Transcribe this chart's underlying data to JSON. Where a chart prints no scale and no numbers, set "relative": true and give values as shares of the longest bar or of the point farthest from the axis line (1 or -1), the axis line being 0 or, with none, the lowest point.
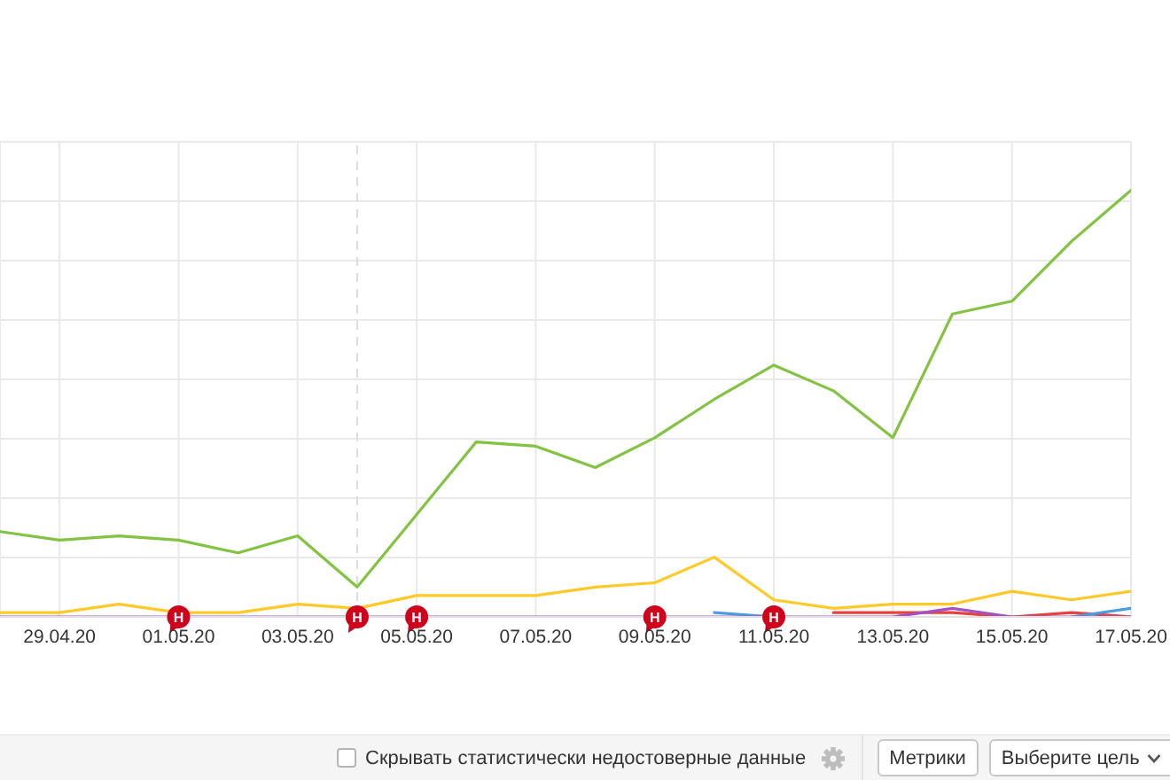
{
  "chart_data": {
    "type": "line",
    "x": [
      "--04-28",
      "--04-29",
      "--04-30",
      "--05-01",
      "--05-02",
      "--05-03",
      "--05-04",
      "--05-05",
      "--05-06",
      "--05-07",
      "--05-08",
      "--05-09",
      "--05-10",
      "--05-11",
      "--05-12",
      "--05-13",
      "--05-14",
      "--05-15",
      "--05-16",
      "--05-17"
    ],
    "series": [
      {
        "color": "#82c341",
        "values": [
          0.2,
          0.18,
          0.19,
          0.18,
          0.15,
          0.19,
          0.07,
          0.24,
          0.41,
          0.4,
          0.35,
          0.42,
          0.51,
          0.59,
          0.53,
          0.42,
          0.71,
          0.74,
          0.88,
          1
        ]
      },
      {
        "color": "#ffc928",
        "values": [
          0.01,
          0.01,
          0.03,
          0.01,
          0.01,
          0.03,
          0.02,
          0.05,
          0.05,
          0.05,
          0.07,
          0.08,
          0.14,
          0.04,
          0.02,
          0.03,
          0.03,
          0.06,
          0.04,
          0.06
        ]
      },
      {
        "color": "#e8403a",
        "values": [
          null,
          null,
          null,
          null,
          null,
          null,
          null,
          null,
          null,
          null,
          null,
          null,
          null,
          null,
          0.01,
          0.01,
          0.01,
          0,
          0.01,
          0
        ]
      },
      {
        "color": "#4a9de0",
        "values": [
          null,
          null,
          null,
          null,
          null,
          null,
          null,
          null,
          null,
          null,
          null,
          null,
          0.01,
          0,
          null,
          null,
          null,
          null,
          0,
          0.02
        ]
      },
      {
        "color": "#a352c4",
        "values": [
          0,
          0,
          0,
          0,
          0,
          0,
          0,
          0,
          0,
          0,
          0,
          0,
          0,
          0,
          0,
          0,
          0.02,
          0,
          0,
          0
        ]
      }
    ],
    "relative": true,
    "xlim": [
      "--04-28",
      "--05-17"
    ],
    "xticks": [
      {
        "value": "--04-29",
        "label": "29.04.20"
      },
      {
        "value": "--05-01",
        "label": "01.05.20"
      },
      {
        "value": "--05-03",
        "label": "03.05.20"
      },
      {
        "value": "--05-05",
        "label": "05.05.20"
      },
      {
        "value": "--05-07",
        "label": "07.05.20"
      },
      {
        "value": "--05-09",
        "label": "09.05.20"
      },
      {
        "value": "--05-11",
        "label": "11.05.20"
      },
      {
        "value": "--05-13",
        "label": "13.05.20"
      },
      {
        "value": "--05-15",
        "label": "15.05.20"
      },
      {
        "value": "--05-17",
        "label": "17.05.20"
      }
    ],
    "grid": true,
    "marker": "none",
    "ref_lines": [
      {
        "axis": "x",
        "value": "--05-04",
        "color": "#dddddd",
        "line_style": "dashed"
      }
    ],
    "annotations": [
      {
        "text": "Н",
        "x": "--05-01",
        "y": 0
      },
      {
        "text": "Н",
        "x": "--05-04",
        "y": 0
      },
      {
        "text": "Н",
        "x": "--05-05",
        "y": 0
      },
      {
        "text": "Н",
        "x": "--05-09",
        "y": 0
      },
      {
        "text": "Н",
        "x": "--05-11",
        "y": 0
      },
      "Скрывать статистически недостоверные данные",
      "Метрики",
      "Выберите цель"
    ]
  }
}
